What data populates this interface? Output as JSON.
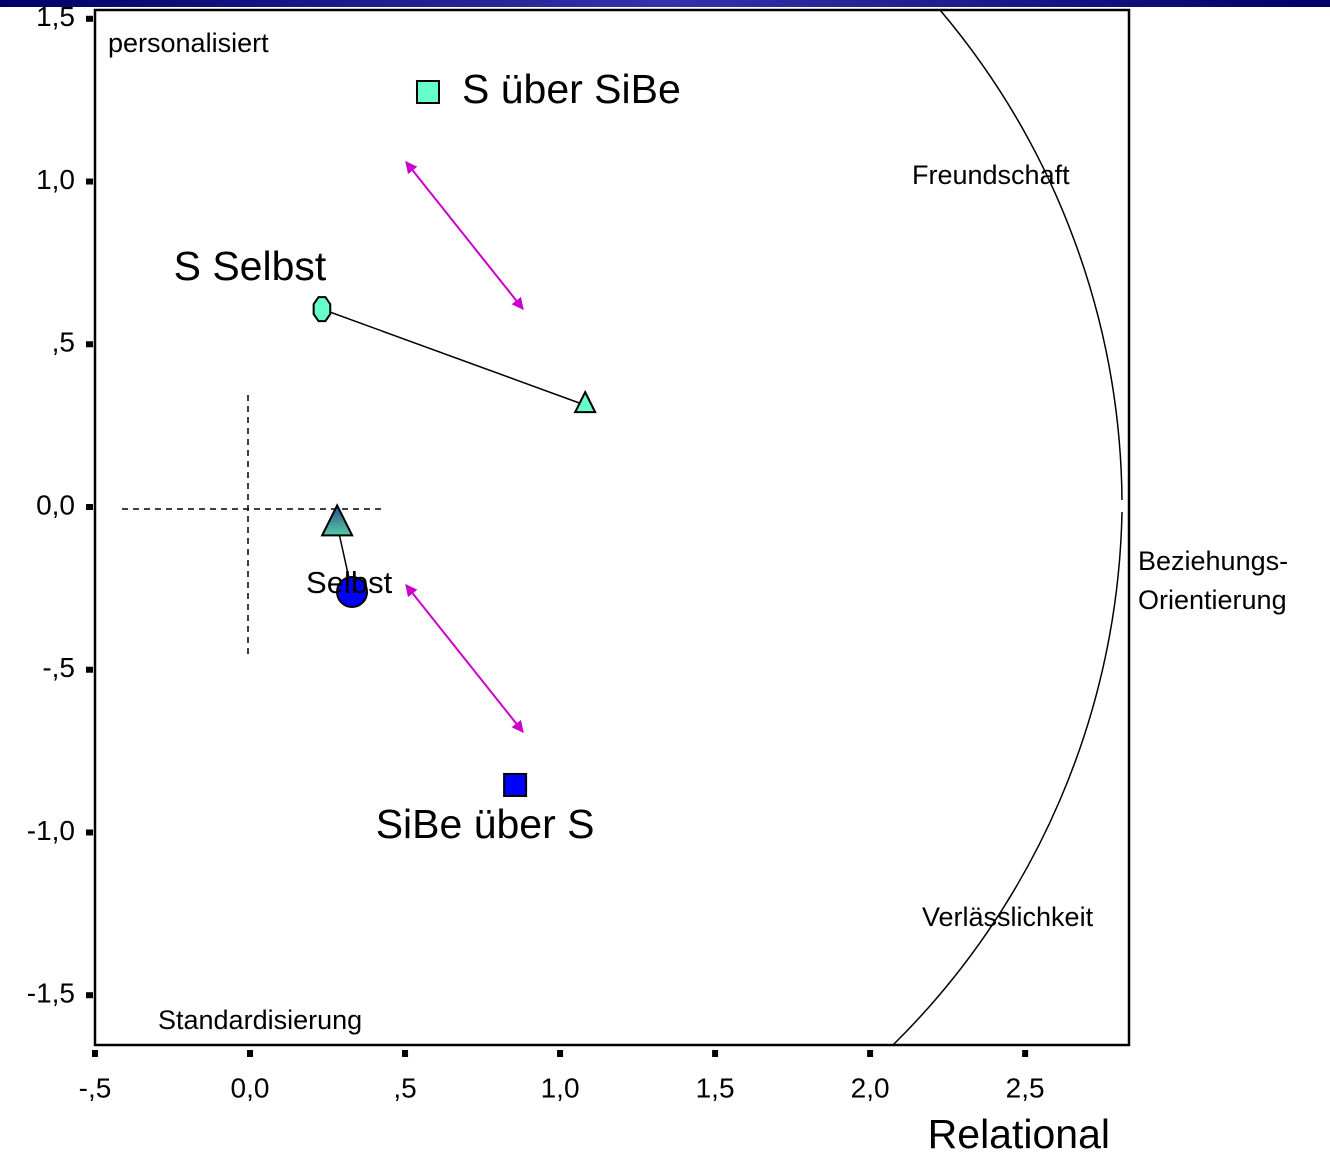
{
  "chart_data": {
    "type": "scatter",
    "x_label": "Relational",
    "annotations": [
      "personalisiert",
      "Standardisierung",
      "Freundschaft",
      "Verlässlichkeit",
      "Beziehungs-",
      "Orientierung"
    ],
    "xlim": [
      -0.5,
      2.835
    ],
    "ylim": [
      -1.653,
      1.527
    ],
    "xticks": [
      {
        "value": -0.5,
        "label": "-,5"
      },
      {
        "value": 0,
        "label": "0,0"
      },
      {
        "value": 0.5,
        "label": ",5"
      },
      {
        "value": 1,
        "label": "1,0"
      },
      {
        "value": 1.5,
        "label": "1,5"
      },
      {
        "value": 2,
        "label": "2,0"
      },
      {
        "value": 2.5,
        "label": "2,5"
      }
    ],
    "yticks": [
      {
        "value": 1.5,
        "label": "1,5"
      },
      {
        "value": 1,
        "label": "1,0"
      },
      {
        "value": 0.5,
        "label": ",5"
      },
      {
        "value": 0,
        "label": "0,0"
      },
      {
        "value": -0.5,
        "label": "-,5"
      },
      {
        "value": -1,
        "label": "-1,0"
      },
      {
        "value": -1.5,
        "label": "-1,5"
      }
    ],
    "series": [
      {
        "name": "S über SiBe",
        "color": "#66ffcc",
        "markers": [
          "square"
        ],
        "x": [
          0.574
        ],
        "y": [
          1.275
        ]
      },
      {
        "name": "S Selbst",
        "color": "#66ffcc",
        "markers": [
          "octagon",
          "triangle"
        ],
        "x": [
          0.232,
          1.081
        ],
        "y": [
          0.608,
          0.313
        ]
      },
      {
        "name": "Selbst",
        "color": "#0000ff",
        "markers": [
          "triangle",
          "circle"
        ],
        "x": [
          0.281,
          0.329
        ],
        "y": [
          -0.055,
          -0.261
        ]
      },
      {
        "name": "SiBe über S",
        "color": "#0000ff",
        "markers": [
          "square"
        ],
        "x": [
          0.855
        ],
        "y": [
          -0.854
        ]
      }
    ]
  }
}
